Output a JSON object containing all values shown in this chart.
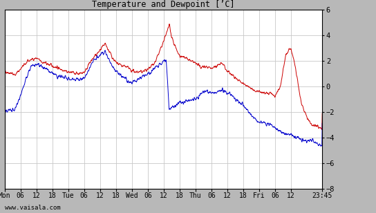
{
  "title": "Temperature and Dewpoint [’C]",
  "ylim": [
    -8,
    6
  ],
  "yticks": [
    -8,
    -6,
    -4,
    -2,
    0,
    2,
    4,
    6
  ],
  "background_color": "#ffffff",
  "outer_bg": "#b8b8b8",
  "temp_color": "#cc0000",
  "dewp_color": "#0000cc",
  "grid_color": "#c8c8c8",
  "watermark": "www.vaisala.com",
  "x_tick_labels": [
    "Mon",
    "06",
    "12",
    "18",
    "Tue",
    "06",
    "12",
    "18",
    "Wed",
    "06",
    "12",
    "18",
    "Thu",
    "06",
    "12",
    "18",
    "Fri",
    "06",
    "12",
    "23:45"
  ],
  "x_tick_positions": [
    0,
    6,
    12,
    18,
    24,
    30,
    36,
    42,
    48,
    54,
    60,
    66,
    72,
    78,
    84,
    90,
    96,
    102,
    108,
    119.75
  ],
  "total_hours": 119.75,
  "title_font": "monospace",
  "tick_font": "monospace"
}
